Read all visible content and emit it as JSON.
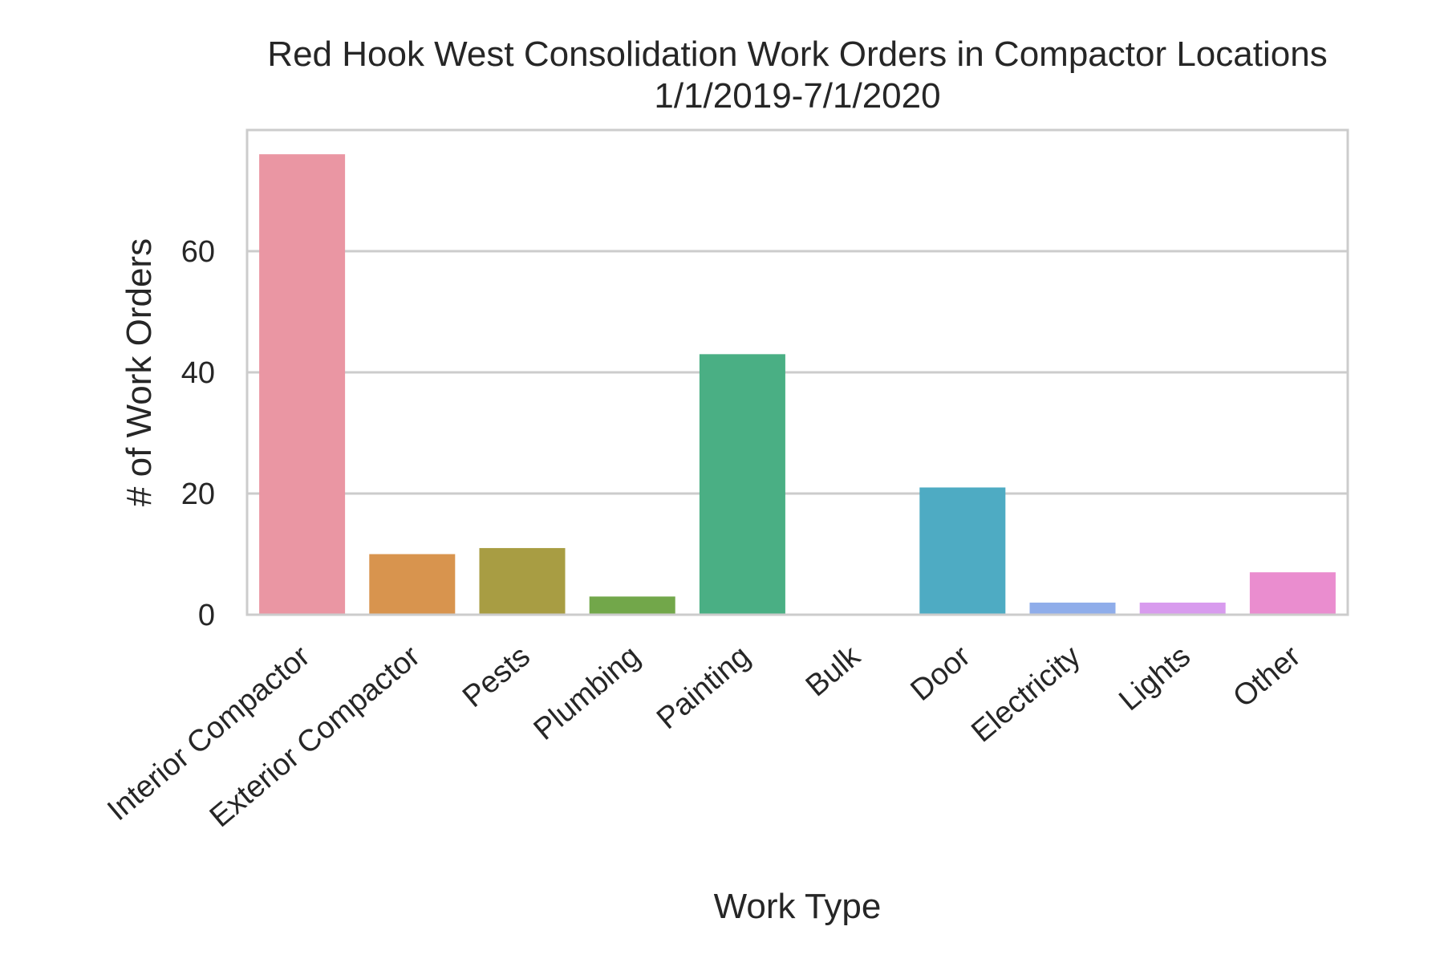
{
  "chart_data": {
    "type": "bar",
    "title": "Red Hook West Consolidation Work Orders in Compactor Locations",
    "subtitle": "1/1/2019-7/1/2020",
    "xlabel": "Work Type",
    "ylabel": "# of Work Orders",
    "categories": [
      "Interior Compactor",
      "Exterior Compactor",
      "Pests",
      "Plumbing",
      "Painting",
      "Bulk",
      "Door",
      "Electricity",
      "Lights",
      "Other"
    ],
    "values": [
      76,
      10,
      11,
      3,
      43,
      0,
      21,
      2,
      2,
      7
    ],
    "colors": [
      "#ea96a3",
      "#d8944e",
      "#a89d43",
      "#72a74a",
      "#4aaf84",
      "#4aac9d",
      "#4eabc3",
      "#8fadea",
      "#d89bee",
      "#ea8dcf"
    ],
    "ylim": [
      0,
      80
    ],
    "yticks": [
      0,
      20,
      40,
      60
    ],
    "grid": true,
    "legend": "none"
  }
}
